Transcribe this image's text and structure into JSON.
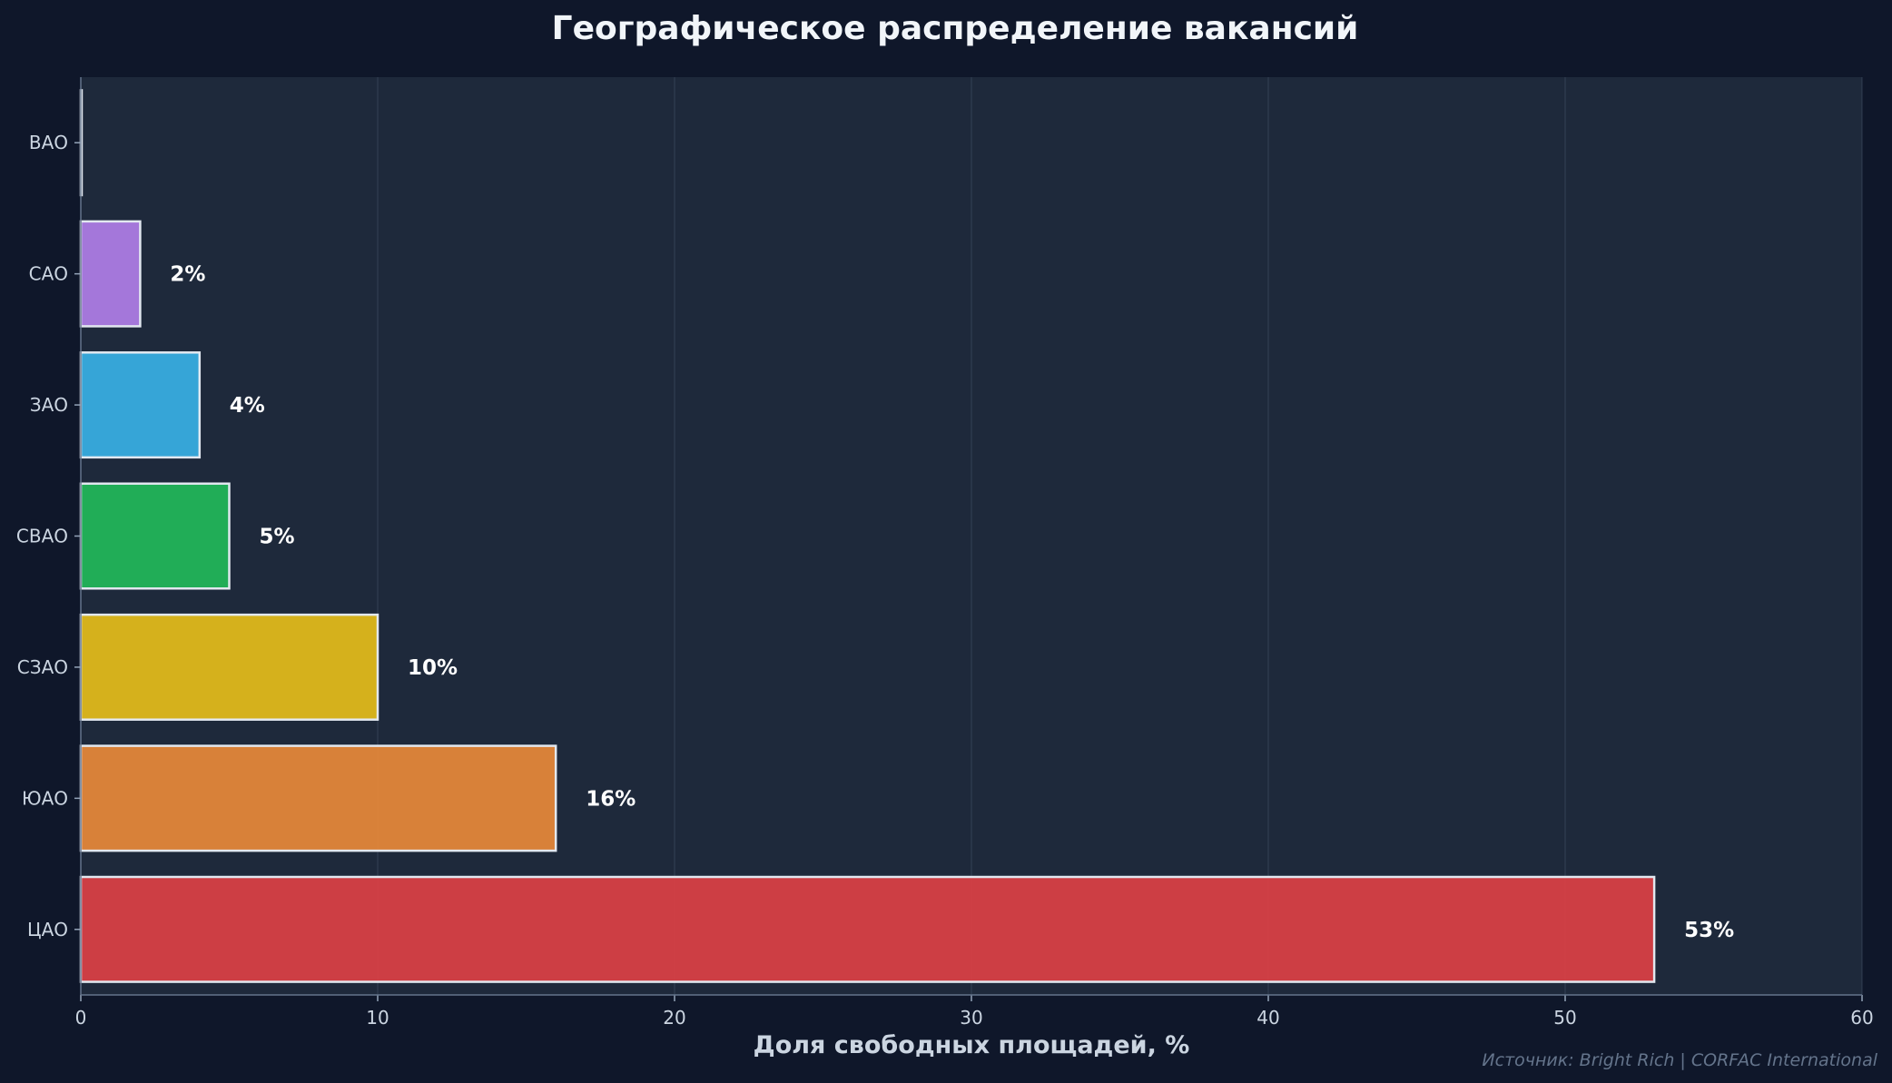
{
  "chart_data": {
    "type": "bar",
    "orientation": "horizontal",
    "title": "Географическое распределение вакансий",
    "xlabel": "Доля свободных площадей, %",
    "ylabel": "",
    "xlim": [
      0,
      60
    ],
    "xticks": [
      0,
      10,
      20,
      30,
      40,
      50,
      60
    ],
    "grid": "x",
    "categories": [
      "ВАО",
      "САО",
      "ЗАО",
      "СВАО",
      "СЗАО",
      "ЮАО",
      "ЦАО"
    ],
    "values": [
      0,
      2,
      4,
      5,
      10,
      16,
      53
    ],
    "data_labels": [
      "",
      "2%",
      "4%",
      "5%",
      "10%",
      "16%",
      "53%"
    ],
    "colors": [
      "#94a3b8",
      "#b07ee8",
      "#38b0e5",
      "#22b85a",
      "#e5bd1a",
      "#e8893a",
      "#dc4045"
    ],
    "source": "Источник: Bright Rich | CORFAC International"
  },
  "colors": {
    "page_background": "#0f172a",
    "plot_background": "#1e293b",
    "bar_outline": "#e2e8f0"
  }
}
